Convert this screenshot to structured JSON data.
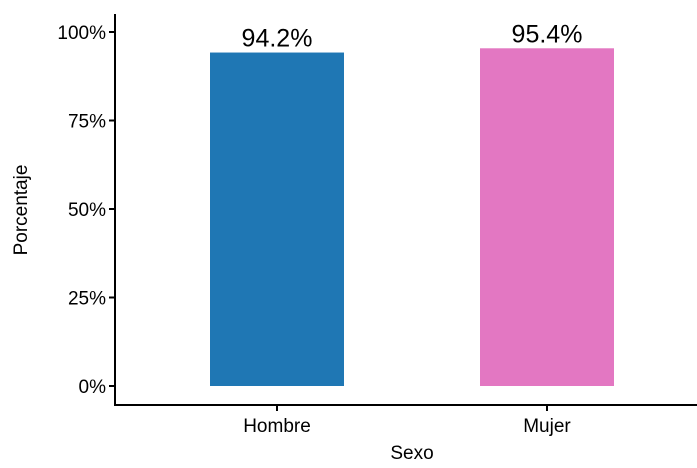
{
  "chart_data": {
    "type": "bar",
    "categories": [
      "Hombre",
      "Mujer"
    ],
    "values": [
      94.2,
      95.4
    ],
    "value_labels": [
      "94.2%",
      "95.4%"
    ],
    "colors": [
      "#1f77b4",
      "#e377c2"
    ],
    "xlabel": "Sexo",
    "ylabel": "Porcentaje",
    "ylim": [
      0,
      100
    ],
    "yticks": [
      0,
      25,
      50,
      75,
      100
    ],
    "ytick_labels": [
      "0%",
      "25%",
      "50%",
      "75%",
      "100%"
    ],
    "grid": false,
    "legend": "none"
  }
}
